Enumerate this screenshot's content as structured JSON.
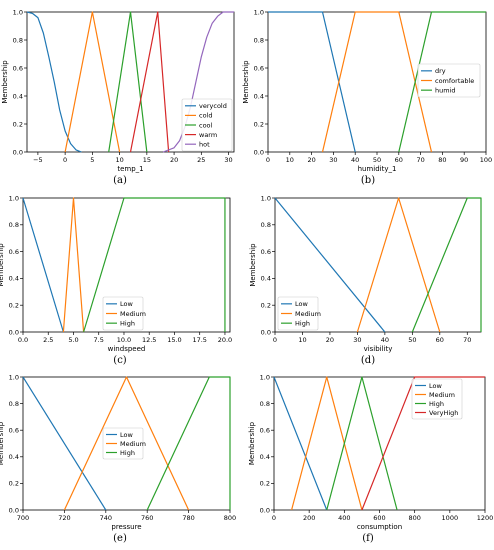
{
  "figure": {
    "captions": [
      "(a)",
      "(b)",
      "(c)",
      "(d)",
      "(e)",
      "(f)"
    ]
  },
  "chart_data": [
    {
      "type": "line",
      "xlabel": "temp_1",
      "ylabel": "Membership",
      "xlim": [
        -7,
        31
      ],
      "ylim": [
        0,
        1
      ],
      "xticks": [
        "−5",
        "0",
        "5",
        "10",
        "15",
        "20",
        "25",
        "30"
      ],
      "xtick_values": [
        -5,
        0,
        5,
        10,
        15,
        20,
        25,
        30
      ],
      "yticks": [
        "0.0",
        "0.2",
        "0.4",
        "0.6",
        "0.8",
        "1.0"
      ],
      "legend_position": "lower-right",
      "series": [
        {
          "name": "verycold",
          "color": "#1f77b4",
          "x": [
            -7,
            -6,
            -5,
            -4,
            -3,
            -2,
            -1,
            0,
            1,
            2,
            3
          ],
          "y": [
            1.0,
            0.99,
            0.96,
            0.85,
            0.68,
            0.5,
            0.3,
            0.15,
            0.06,
            0.015,
            0.0
          ]
        },
        {
          "name": "cold",
          "color": "#ff7f0e",
          "x": [
            0,
            5,
            10
          ],
          "y": [
            0,
            1,
            0
          ]
        },
        {
          "name": "cool",
          "color": "#2ca02c",
          "x": [
            8,
            12,
            15
          ],
          "y": [
            0,
            1,
            0
          ]
        },
        {
          "name": "warm",
          "color": "#d62728",
          "x": [
            12,
            17,
            19
          ],
          "y": [
            0,
            1,
            0
          ]
        },
        {
          "name": "hot",
          "color": "#9467bd",
          "x": [
            18,
            20,
            21,
            22,
            23,
            24,
            25,
            26,
            27,
            28,
            29,
            30,
            31
          ],
          "y": [
            0.0,
            0.03,
            0.08,
            0.18,
            0.32,
            0.5,
            0.68,
            0.82,
            0.92,
            0.97,
            1.0,
            1.0,
            1.0
          ]
        }
      ]
    },
    {
      "type": "line",
      "xlabel": "humidity_1",
      "ylabel": "Membership",
      "xlim": [
        0,
        100
      ],
      "ylim": [
        0,
        1
      ],
      "xticks": [
        "0",
        "10",
        "20",
        "30",
        "40",
        "50",
        "60",
        "70",
        "80",
        "90",
        "100"
      ],
      "xtick_values": [
        0,
        10,
        20,
        30,
        40,
        50,
        60,
        70,
        80,
        90,
        100
      ],
      "yticks": [
        "0.0",
        "0.2",
        "0.4",
        "0.6",
        "0.8",
        "1.0"
      ],
      "legend_position": "center-right",
      "series": [
        {
          "name": "dry",
          "color": "#1f77b4",
          "x": [
            0,
            25,
            40
          ],
          "y": [
            1,
            1,
            0
          ]
        },
        {
          "name": "comfortable",
          "color": "#ff7f0e",
          "x": [
            25,
            40,
            60,
            75
          ],
          "y": [
            0,
            1,
            1,
            0
          ]
        },
        {
          "name": "humid",
          "color": "#2ca02c",
          "x": [
            60,
            75,
            100
          ],
          "y": [
            0,
            1,
            1
          ]
        }
      ]
    },
    {
      "type": "line",
      "xlabel": "windspeed",
      "ylabel": "Membership",
      "xlim": [
        0,
        20.5
      ],
      "ylim": [
        0,
        1
      ],
      "xticks": [
        "0.0",
        "2.5",
        "5.0",
        "7.5",
        "10.0",
        "12.5",
        "15.0",
        "17.5",
        "20.0"
      ],
      "xtick_values": [
        0,
        2.5,
        5,
        7.5,
        10,
        12.5,
        15,
        17.5,
        20
      ],
      "yticks": [
        "0.0",
        "0.2",
        "0.4",
        "0.6",
        "0.8",
        "1.0"
      ],
      "legend_position": "lower-left",
      "series": [
        {
          "name": "Low",
          "color": "#1f77b4",
          "x": [
            0,
            4
          ],
          "y": [
            1,
            0
          ]
        },
        {
          "name": "Medium",
          "color": "#ff7f0e",
          "x": [
            4,
            5,
            6
          ],
          "y": [
            0,
            1,
            0
          ]
        },
        {
          "name": "High",
          "color": "#2ca02c",
          "x": [
            6,
            10,
            20,
            20
          ],
          "y": [
            0,
            1,
            1,
            0
          ]
        }
      ]
    },
    {
      "type": "line",
      "xlabel": "visibility",
      "ylabel": "Membership",
      "xlim": [
        0,
        75
      ],
      "ylim": [
        0,
        1
      ],
      "xticks": [
        "0",
        "10",
        "20",
        "30",
        "40",
        "50",
        "60",
        "70"
      ],
      "xtick_values": [
        0,
        10,
        20,
        30,
        40,
        50,
        60,
        70
      ],
      "yticks": [
        "0.0",
        "0.2",
        "0.4",
        "0.6",
        "0.8",
        "1.0"
      ],
      "legend_position": "lower-left",
      "series": [
        {
          "name": "Low",
          "color": "#1f77b4",
          "x": [
            0,
            40
          ],
          "y": [
            1,
            0
          ]
        },
        {
          "name": "Medium",
          "color": "#ff7f0e",
          "x": [
            30,
            45,
            60
          ],
          "y": [
            0,
            1,
            0
          ]
        },
        {
          "name": "High",
          "color": "#2ca02c",
          "x": [
            50,
            70,
            75,
            75
          ],
          "y": [
            0,
            1,
            1,
            0
          ]
        }
      ]
    },
    {
      "type": "line",
      "xlabel": "pressure",
      "ylabel": "Membership",
      "xlim": [
        700,
        800
      ],
      "ylim": [
        0,
        1
      ],
      "xticks": [
        "700",
        "720",
        "740",
        "760",
        "780",
        "800"
      ],
      "xtick_values": [
        700,
        720,
        740,
        760,
        780,
        800
      ],
      "yticks": [
        "0.0",
        "0.2",
        "0.4",
        "0.6",
        "0.8",
        "1.0"
      ],
      "legend_position": "center",
      "series": [
        {
          "name": "Low",
          "color": "#1f77b4",
          "x": [
            700,
            740
          ],
          "y": [
            1,
            0
          ]
        },
        {
          "name": "Medium",
          "color": "#ff7f0e",
          "x": [
            720,
            750,
            780
          ],
          "y": [
            0,
            1,
            0
          ]
        },
        {
          "name": "High",
          "color": "#2ca02c",
          "x": [
            760,
            790,
            800,
            800
          ],
          "y": [
            0,
            1,
            1,
            0
          ]
        }
      ]
    },
    {
      "type": "line",
      "xlabel": "consumption",
      "ylabel": "Membership",
      "xlim": [
        0,
        1200
      ],
      "ylim": [
        0,
        1
      ],
      "xticks": [
        "0",
        "200",
        "400",
        "600",
        "800",
        "1000",
        "1200"
      ],
      "xtick_values": [
        0,
        200,
        400,
        600,
        800,
        1000,
        1200
      ],
      "yticks": [
        "0.0",
        "0.2",
        "0.4",
        "0.6",
        "0.8",
        "1.0"
      ],
      "legend_position": "top-right",
      "series": [
        {
          "name": "Low",
          "color": "#1f77b4",
          "x": [
            0,
            300
          ],
          "y": [
            1,
            0
          ]
        },
        {
          "name": "Medium",
          "color": "#ff7f0e",
          "x": [
            100,
            300,
            500
          ],
          "y": [
            0,
            1,
            0
          ]
        },
        {
          "name": "High",
          "color": "#2ca02c",
          "x": [
            300,
            500,
            700
          ],
          "y": [
            0,
            1,
            0
          ]
        },
        {
          "name": "VeryHigh",
          "color": "#d62728",
          "x": [
            500,
            800,
            1200
          ],
          "y": [
            0,
            1,
            1
          ]
        }
      ]
    }
  ]
}
